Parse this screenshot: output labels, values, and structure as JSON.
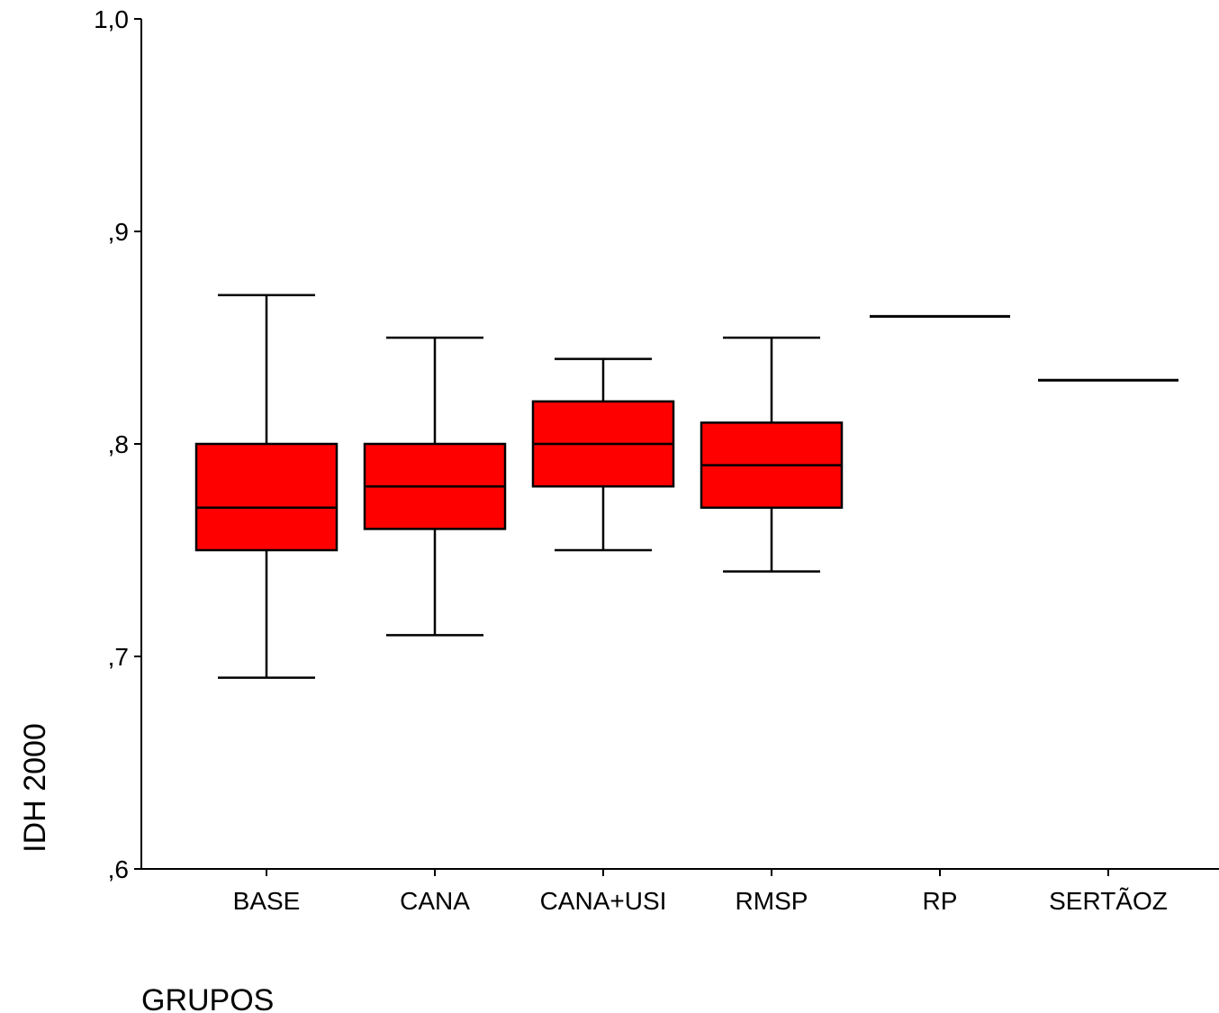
{
  "chart_data": {
    "type": "boxplot",
    "title": "",
    "xlabel": "GRUPOS",
    "ylabel": "IDH 2000",
    "ylim": [
      0.6,
      1.0
    ],
    "yticks": [
      {
        "value": 0.6,
        "label": ",6"
      },
      {
        "value": 0.7,
        "label": ",7"
      },
      {
        "value": 0.8,
        "label": ",8"
      },
      {
        "value": 0.9,
        "label": ",9"
      },
      {
        "value": 1.0,
        "label": "1,0"
      }
    ],
    "categories": [
      "BASE",
      "CANA",
      "CANA+USI",
      "RMSP",
      "RP",
      "SERTÃOZ"
    ],
    "boxes": [
      {
        "category": "BASE",
        "min": 0.69,
        "q1": 0.75,
        "median": 0.77,
        "q3": 0.8,
        "max": 0.87
      },
      {
        "category": "CANA",
        "min": 0.71,
        "q1": 0.76,
        "median": 0.78,
        "q3": 0.8,
        "max": 0.85
      },
      {
        "category": "CANA+USI",
        "min": 0.75,
        "q1": 0.78,
        "median": 0.8,
        "q3": 0.82,
        "max": 0.84
      },
      {
        "category": "RMSP",
        "min": 0.74,
        "q1": 0.77,
        "median": 0.79,
        "q3": 0.81,
        "max": 0.85
      },
      {
        "category": "RP",
        "min": 0.86,
        "q1": 0.86,
        "median": 0.86,
        "q3": 0.86,
        "max": 0.86
      },
      {
        "category": "SERTÃOZ",
        "min": 0.83,
        "q1": 0.83,
        "median": 0.83,
        "q3": 0.83,
        "max": 0.83
      }
    ],
    "box_color": "#ff0000",
    "line_color": "#000000",
    "grid": false
  }
}
